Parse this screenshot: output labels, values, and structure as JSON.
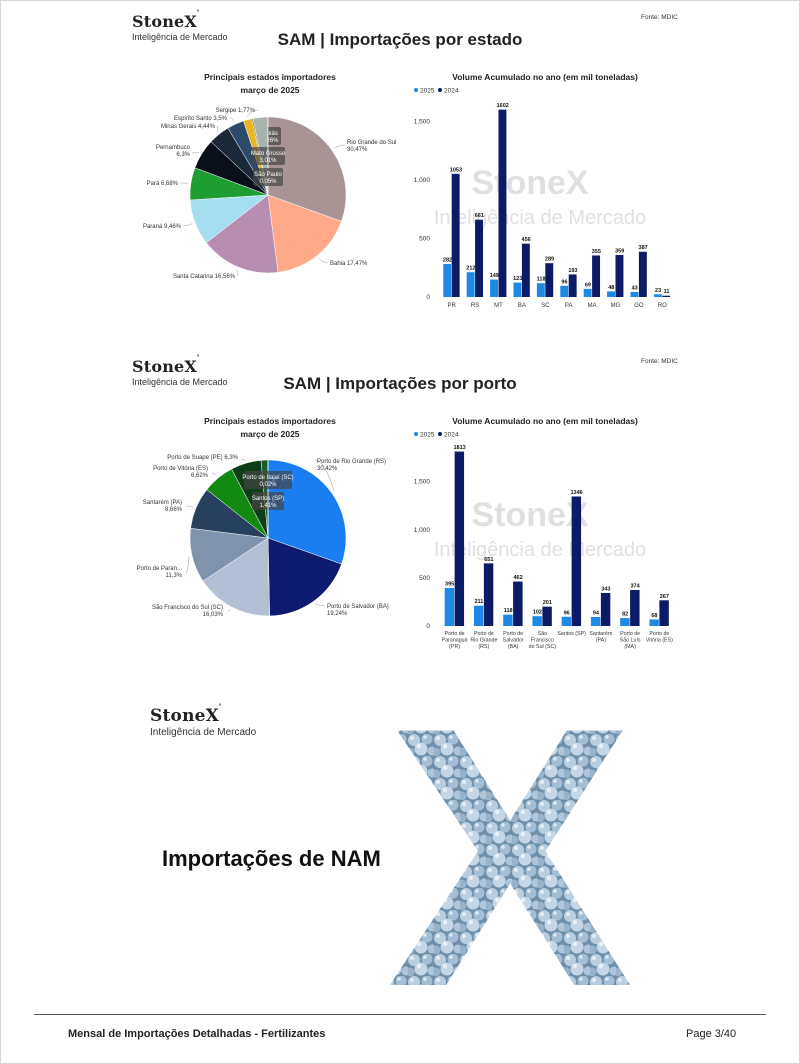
{
  "brand": {
    "name": "StoneX",
    "sub": "Inteligência de Mercado",
    "watermark_name": "StoneX",
    "watermark_sub": "Inteligência de Mercado"
  },
  "colors": {
    "bar_2025": "#1e88e5",
    "bar_2024": "#0d1a66"
  },
  "section1": {
    "title": "SAM | Importações por estado",
    "source": "Fonte: MDIC",
    "pie_title_line1": "Principais estados importadores",
    "pie_title_line2": "março de 2025",
    "bar_title": "Volume Acumulado no ano (em mil toneladas)"
  },
  "section2": {
    "title": "SAM | Importações por porto",
    "source": "Fonte: MDIC",
    "pie_title_line1": "Principais estados importadores",
    "pie_title_line2": "março de 2025",
    "bar_title": "Volume Acumulado no ano (em mil toneladas)"
  },
  "section3": {
    "title": "Importações de NAM",
    "big_letter": "X"
  },
  "footer": {
    "title": "Mensal de Importações Detalhadas - Fertilizantes",
    "page": "Page 3/40"
  },
  "chart_data": [
    {
      "type": "pie",
      "title": "Principais estados importadores",
      "subtitle": "março de 2025",
      "slices": [
        {
          "label": "Rio Grande do Sul",
          "value": 30.47,
          "text": "30,47%",
          "color": "#a89494"
        },
        {
          "label": "Bahia",
          "value": 17.47,
          "text": "17,47%",
          "color": "#ffa98a"
        },
        {
          "label": "Santa Catarina",
          "value": 16.56,
          "text": "16,56%",
          "color": "#b88db0"
        },
        {
          "label": "Paraná",
          "value": 9.46,
          "text": "9,46%",
          "color": "#a5def0"
        },
        {
          "label": "Pará",
          "value": 6.68,
          "text": "6,68%",
          "color": "#1e9e32"
        },
        {
          "label": "Pernambuco",
          "value": 6.3,
          "text": "6,3%",
          "color": "#0a0f1a"
        },
        {
          "label": "Minas Gerais",
          "value": 4.44,
          "text": "4,44%",
          "color": "#1a2838"
        },
        {
          "label": "Espírito Santo",
          "value": 3.5,
          "text": "3,5%",
          "color": "#2d4a6b"
        },
        {
          "label": "Sergipe",
          "value": 1.77,
          "text": "1,77%",
          "color": "#e8b820"
        },
        {
          "label": "Goiás",
          "value": 0.26,
          "text": "0,26%",
          "color": "#6e4f35"
        },
        {
          "label": "Mato Grosso",
          "value": 3.01,
          "text": "3,01%",
          "color": "#a6b4ad"
        },
        {
          "label": "São Paulo",
          "value": 0.05,
          "text": "0,05%",
          "color": "#4b6650"
        }
      ]
    },
    {
      "type": "bar",
      "title": "Volume Acumulado no ano (em mil toneladas)",
      "categories": [
        "PR",
        "RS",
        "MT",
        "BA",
        "SC",
        "PA",
        "MA",
        "MG",
        "GO",
        "RO"
      ],
      "series": [
        {
          "name": "2025",
          "values": [
            282,
            212,
            149,
            123,
            118,
            96,
            69,
            48,
            43,
            23
          ]
        },
        {
          "name": "2024",
          "values": [
            1053,
            661,
            1602,
            456,
            289,
            193,
            355,
            359,
            387,
            11
          ]
        }
      ],
      "y_ticks": [
        0,
        500,
        1000,
        1500
      ],
      "y_tick_labels": [
        "0",
        "500",
        "1.000",
        "1.500"
      ],
      "ylim": [
        0,
        1650
      ],
      "legend": "top-left"
    },
    {
      "type": "pie",
      "title": "Principais estados importadores",
      "subtitle": "março de 2025",
      "slices": [
        {
          "label": "Porto de Rio Grande (RS)",
          "value": 30.42,
          "text": "30,42%",
          "color": "#1a7ef0"
        },
        {
          "label": "Porto de Salvador (BA)",
          "value": 19.24,
          "text": "19,24%",
          "color": "#0d1a6e"
        },
        {
          "label": "São Francisco do Sul (SC)",
          "value": 16.03,
          "text": "16,03%",
          "color": "#b3bfd4"
        },
        {
          "label": "Porto de Paran...",
          "value": 11.3,
          "text": "11,3%",
          "color": "#7f93ad"
        },
        {
          "label": "Santarém (PA)",
          "value": 8.66,
          "text": "8,66%",
          "color": "#27405e"
        },
        {
          "label": "Porto de Vitória (ES)",
          "value": 6.62,
          "text": "6,62%",
          "color": "#128a12"
        },
        {
          "label": "Porto de Suape (PE)",
          "value": 6.3,
          "text": "6,3%",
          "color": "#0e3d1a"
        },
        {
          "label": "Santos (SP)",
          "value": 1.41,
          "text": "1,41%",
          "color": "#1b5c2a"
        },
        {
          "label": "Porto de Itajaí (SC)",
          "value": 0.02,
          "text": "0,02%",
          "color": "#1b5c2a"
        }
      ]
    },
    {
      "type": "bar",
      "title": "Volume Acumulado no ano (em mil toneladas)",
      "categories": [
        "Porto de Paranaguá (PR)",
        "Porto de Rio Grande (RS)",
        "Porto de Salvador (BA)",
        "São Francisco do Sul (SC)",
        "Santos (SP)",
        "Santarém (PA)",
        "Porto de São Luís (MA)",
        "Porto de Vitória (ES)"
      ],
      "category_lines": [
        [
          "Porto de",
          "Paranaguá",
          "(PR)"
        ],
        [
          "Porto de",
          "Rio Grande",
          "(RS)"
        ],
        [
          "Porto de",
          "Salvador",
          "(BA)"
        ],
        [
          "São",
          "Francisco",
          "do Sul (SC)"
        ],
        [
          "Santos (SP)"
        ],
        [
          "Santarém",
          "(PA)"
        ],
        [
          "Porto de",
          "São Luís",
          "(MA)"
        ],
        [
          "Porto de",
          "Vitória (ES)"
        ]
      ],
      "series": [
        {
          "name": "2025",
          "values": [
            395,
            211,
            118,
            102,
            96,
            94,
            82,
            68
          ]
        },
        {
          "name": "2024",
          "values": [
            1813,
            651,
            462,
            201,
            1346,
            343,
            374,
            267
          ]
        }
      ],
      "y_ticks": [
        0,
        500,
        1000,
        1500
      ],
      "y_tick_labels": [
        "0",
        "500",
        "1.000",
        "1.500"
      ],
      "ylim": [
        0,
        1850
      ],
      "legend": "top-left"
    }
  ]
}
